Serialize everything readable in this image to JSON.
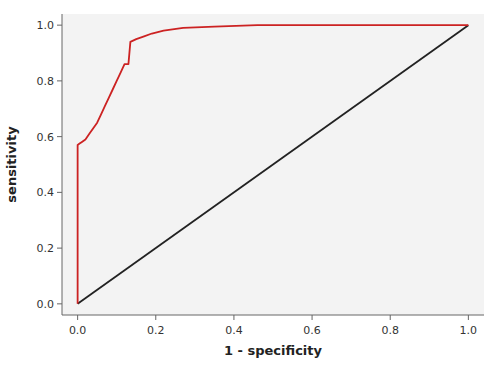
{
  "chart_data": {
    "type": "line",
    "xlabel": "1 - specificity",
    "ylabel": "sensitivity",
    "series": [
      {
        "color": "#222222",
        "x": [
          0.0,
          1.0
        ],
        "values": [
          0.0,
          1.0
        ]
      },
      {
        "color": "#cc2222",
        "x": [
          0.0,
          0.0,
          0.0,
          0.005,
          0.01,
          0.02,
          0.03,
          0.04,
          0.05,
          0.06,
          0.07,
          0.08,
          0.09,
          0.1,
          0.11,
          0.12,
          0.13,
          0.135,
          0.15,
          0.17,
          0.19,
          0.22,
          0.27,
          0.35,
          0.46,
          0.55,
          0.65,
          0.8,
          0.9,
          1.0
        ],
        "values": [
          0.0,
          0.22,
          0.57,
          0.575,
          0.58,
          0.59,
          0.61,
          0.63,
          0.65,
          0.68,
          0.71,
          0.74,
          0.77,
          0.8,
          0.83,
          0.86,
          0.86,
          0.94,
          0.95,
          0.96,
          0.97,
          0.98,
          0.99,
          0.995,
          1.0,
          1.0,
          1.0,
          1.0,
          1.0,
          1.0
        ]
      }
    ],
    "xlim": [
      -0.04,
      1.04
    ],
    "ylim": [
      -0.04,
      1.04
    ],
    "xticks": [
      {
        "value": 0.0,
        "label": "0.0"
      },
      0.2,
      0.4,
      0.6,
      0.8,
      {
        "value": 1.0,
        "label": "1.0"
      }
    ],
    "yticks": [
      {
        "value": 0.0,
        "label": "0.0"
      },
      0.2,
      0.4,
      0.6,
      0.8,
      {
        "value": 1.0,
        "label": "1.0"
      }
    ],
    "grid": false
  }
}
